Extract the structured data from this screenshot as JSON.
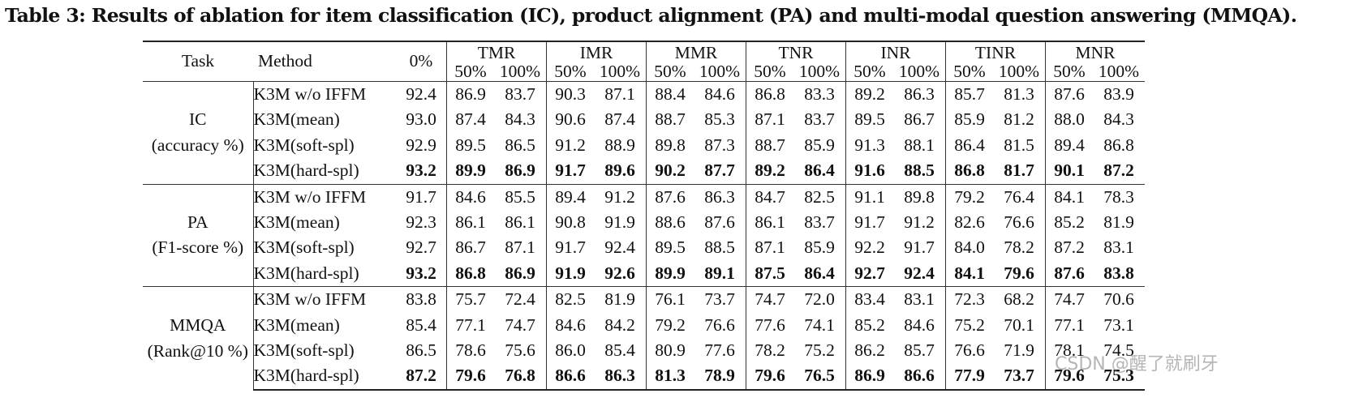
{
  "caption": "Table 3: Results of ablation for item classification (IC), product alignment (PA) and multi-modal question answering (MMQA).",
  "headers": {
    "task": "Task",
    "method": "Method",
    "zero": "0%",
    "groups": [
      "TMR",
      "IMR",
      "MMR",
      "TNR",
      "INR",
      "TINR",
      "MNR"
    ],
    "sub": [
      "50%",
      "100%"
    ]
  },
  "tasks": [
    {
      "name": "IC",
      "metric": "(accuracy %)",
      "rows": [
        {
          "method": "K3M w/o IFFM",
          "bold": false,
          "base": "92.4",
          "values": [
            "86.9",
            "83.7",
            "90.3",
            "87.1",
            "88.4",
            "84.6",
            "86.8",
            "83.3",
            "89.2",
            "86.3",
            "85.7",
            "81.3",
            "87.6",
            "83.9"
          ]
        },
        {
          "method": "K3M(mean)",
          "bold": false,
          "base": "93.0",
          "values": [
            "87.4",
            "84.3",
            "90.6",
            "87.4",
            "88.7",
            "85.3",
            "87.1",
            "83.7",
            "89.5",
            "86.7",
            "85.9",
            "81.2",
            "88.0",
            "84.3"
          ]
        },
        {
          "method": "K3M(soft-spl)",
          "bold": false,
          "base": "92.9",
          "values": [
            "89.5",
            "86.5",
            "91.2",
            "88.9",
            "89.8",
            "87.3",
            "88.7",
            "85.9",
            "91.3",
            "88.1",
            "86.4",
            "81.5",
            "89.4",
            "86.8"
          ]
        },
        {
          "method": "K3M(hard-spl)",
          "bold": true,
          "base": "93.2",
          "values": [
            "89.9",
            "86.9",
            "91.7",
            "89.6",
            "90.2",
            "87.7",
            "89.2",
            "86.4",
            "91.6",
            "88.5",
            "86.8",
            "81.7",
            "90.1",
            "87.2"
          ]
        }
      ]
    },
    {
      "name": "PA",
      "metric": "(F1-score %)",
      "rows": [
        {
          "method": "K3M w/o IFFM",
          "bold": false,
          "base": "91.7",
          "values": [
            "84.6",
            "85.5",
            "89.4",
            "91.2",
            "87.6",
            "86.3",
            "84.7",
            "82.5",
            "91.1",
            "89.8",
            "79.2",
            "76.4",
            "84.1",
            "78.3"
          ]
        },
        {
          "method": "K3M(mean)",
          "bold": false,
          "base": "92.3",
          "values": [
            "86.1",
            "86.1",
            "90.8",
            "91.9",
            "88.6",
            "87.6",
            "86.1",
            "83.7",
            "91.7",
            "91.2",
            "82.6",
            "76.6",
            "85.2",
            "81.9"
          ]
        },
        {
          "method": "K3M(soft-spl)",
          "bold": false,
          "base": "92.7",
          "values": [
            "86.7",
            "87.1",
            "91.7",
            "92.4",
            "89.5",
            "88.5",
            "87.1",
            "85.9",
            "92.2",
            "91.7",
            "84.0",
            "78.2",
            "87.2",
            "83.1"
          ]
        },
        {
          "method": "K3M(hard-spl)",
          "bold": true,
          "base": "93.2",
          "values": [
            "86.8",
            "86.9",
            "91.9",
            "92.6",
            "89.9",
            "89.1",
            "87.5",
            "86.4",
            "92.7",
            "92.4",
            "84.1",
            "79.6",
            "87.6",
            "83.8"
          ]
        }
      ]
    },
    {
      "name": "MMQA",
      "metric": "(Rank@10 %)",
      "rows": [
        {
          "method": "K3M w/o IFFM",
          "bold": false,
          "base": "83.8",
          "values": [
            "75.7",
            "72.4",
            "82.5",
            "81.9",
            "76.1",
            "73.7",
            "74.7",
            "72.0",
            "83.4",
            "83.1",
            "72.3",
            "68.2",
            "74.7",
            "70.6"
          ]
        },
        {
          "method": "K3M(mean)",
          "bold": false,
          "base": "85.4",
          "values": [
            "77.1",
            "74.7",
            "84.6",
            "84.2",
            "79.2",
            "76.6",
            "77.6",
            "74.1",
            "85.2",
            "84.6",
            "75.2",
            "70.1",
            "77.1",
            "73.1"
          ]
        },
        {
          "method": "K3M(soft-spl)",
          "bold": false,
          "base": "86.5",
          "values": [
            "78.6",
            "75.6",
            "86.0",
            "85.4",
            "80.9",
            "77.6",
            "78.2",
            "75.2",
            "86.2",
            "85.7",
            "76.6",
            "71.9",
            "78.1",
            "74.5"
          ]
        },
        {
          "method": "K3M(hard-spl)",
          "bold": true,
          "base": "87.2",
          "values": [
            "79.6",
            "76.8",
            "86.6",
            "86.3",
            "81.3",
            "78.9",
            "79.6",
            "76.5",
            "86.9",
            "86.6",
            "77.9",
            "73.7",
            "79.6",
            "75.3"
          ]
        }
      ]
    }
  ],
  "watermark": "CSDN @醒了就刷牙"
}
